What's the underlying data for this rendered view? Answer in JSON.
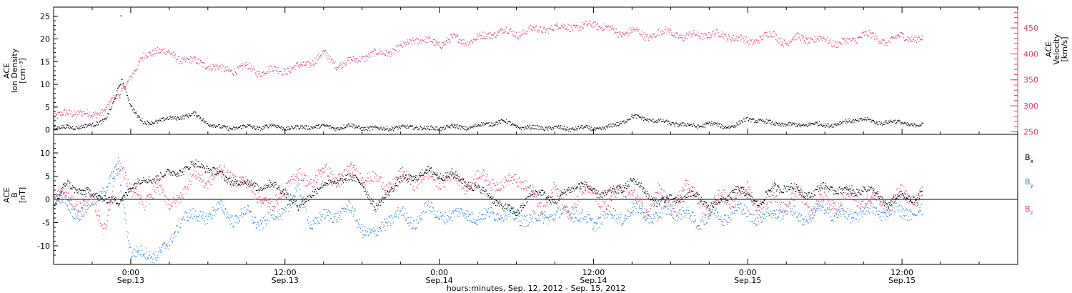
{
  "colors": {
    "density": "#000000",
    "velocity": "#e83a6a",
    "bx": "#000000",
    "by": "#1f7fe0",
    "bz": "#e83a6a",
    "axis": "#000000"
  },
  "chart_data": [
    {
      "type": "scatter",
      "title": "",
      "x_unit": "hours since Sep. 12, 2012 00:00",
      "xlim": [
        18,
        93
      ],
      "yleft_title": [
        "ACE",
        "Ion Density",
        "[cm⁻³]"
      ],
      "yleft_ticks": [
        "0",
        "5",
        "10",
        "15",
        "20",
        "25"
      ],
      "yleft_lim": [
        -1,
        27
      ],
      "yright_title": [
        "ACE",
        "Velocity",
        "[km/s]"
      ],
      "yright_ticks": [
        "250",
        "300",
        "350",
        "400",
        "450"
      ],
      "yright_lim": [
        245,
        490
      ],
      "series": [
        {
          "name": "",
          "axis": "left",
          "color_key": "density",
          "x": [
            18,
            19,
            20,
            21,
            22,
            22.5,
            23,
            23.3,
            23.7,
            24,
            24.5,
            25,
            26,
            27,
            28,
            29,
            30,
            31,
            32,
            33,
            34,
            35,
            36,
            37,
            38,
            39,
            40,
            41,
            42,
            43,
            44,
            45,
            46,
            47,
            48,
            49,
            50,
            51,
            52,
            53,
            54,
            55,
            56,
            57,
            58,
            59,
            60,
            61,
            62,
            63,
            64,
            65,
            66,
            67,
            68,
            69,
            70,
            71,
            72,
            73,
            74,
            75,
            76,
            77,
            78,
            79,
            80,
            81,
            82,
            83,
            84,
            85,
            85.6
          ],
          "y": [
            0.5,
            0.6,
            0.8,
            1.0,
            2.5,
            5.0,
            9.0,
            11.0,
            8.0,
            5.5,
            3.0,
            1.5,
            2.0,
            2.5,
            3.0,
            3.5,
            1.5,
            0.5,
            0.5,
            0.8,
            0.5,
            1.0,
            0.5,
            0.5,
            0.8,
            0.8,
            0.5,
            1.0,
            0.5,
            0.3,
            0.5,
            0.5,
            0.8,
            0.3,
            0.5,
            0.8,
            0.5,
            1.0,
            1.5,
            2.0,
            0.8,
            0.5,
            0.5,
            0.5,
            0.3,
            0.5,
            0.3,
            0.5,
            1.5,
            3.0,
            2.5,
            2.0,
            1.5,
            1.2,
            0.8,
            1.5,
            0.8,
            1.0,
            2.5,
            2.0,
            1.5,
            1.2,
            1.0,
            1.5,
            1.0,
            1.5,
            2.0,
            2.5,
            1.5,
            2.0,
            1.5,
            1.2,
            1.0
          ]
        },
        {
          "name": "",
          "axis": "right",
          "color_key": "velocity",
          "x": [
            18,
            19,
            20,
            21,
            22,
            22.5,
            23,
            23.5,
            24,
            24.5,
            25,
            26,
            27,
            28,
            29,
            30,
            31,
            32,
            33,
            34,
            35,
            36,
            37,
            38,
            39,
            40,
            41,
            42,
            43,
            44,
            45,
            46,
            47,
            48,
            49,
            50,
            51,
            52,
            53,
            54,
            55,
            56,
            57,
            58,
            59,
            60,
            61,
            62,
            63,
            64,
            65,
            66,
            67,
            68,
            69,
            70,
            71,
            72,
            73,
            74,
            75,
            76,
            77,
            78,
            79,
            80,
            81,
            82,
            83,
            84,
            85,
            85.6
          ],
          "y": [
            280,
            285,
            290,
            280,
            295,
            310,
            315,
            340,
            360,
            375,
            395,
            410,
            400,
            390,
            385,
            380,
            370,
            370,
            375,
            365,
            370,
            370,
            375,
            385,
            400,
            380,
            385,
            395,
            400,
            405,
            410,
            430,
            425,
            420,
            430,
            425,
            430,
            440,
            445,
            440,
            445,
            450,
            450,
            455,
            450,
            460,
            450,
            440,
            445,
            435,
            440,
            445,
            430,
            440,
            435,
            440,
            430,
            425,
            430,
            440,
            420,
            435,
            425,
            430,
            420,
            425,
            440,
            430,
            425,
            435,
            430,
            428
          ]
        }
      ]
    },
    {
      "type": "scatter",
      "title": "",
      "x_unit": "hours since Sep. 12, 2012 00:00",
      "xlim": [
        18,
        93
      ],
      "yleft_title": [
        "ACE",
        "B",
        "[nT]"
      ],
      "yleft_ticks": [
        "-10",
        "-5",
        "0",
        "5",
        "10"
      ],
      "yleft_lim": [
        -14,
        14
      ],
      "zero_line": true,
      "legend": [
        {
          "label": "B",
          "sub": "x",
          "color_key": "bx"
        },
        {
          "label": "B",
          "sub": "y",
          "color_key": "by"
        },
        {
          "label": "B",
          "sub": "z",
          "color_key": "bz"
        }
      ],
      "legend_position": "right",
      "series": [
        {
          "name": "Bx",
          "color_key": "bx",
          "x": [
            18,
            19,
            20,
            21,
            22,
            23,
            24,
            25,
            26,
            27,
            28,
            29,
            30,
            31,
            32,
            33,
            34,
            35,
            36,
            37,
            38,
            39,
            40,
            41,
            42,
            43,
            44,
            45,
            46,
            47,
            48,
            49,
            50,
            51,
            52,
            53,
            54,
            55,
            56,
            57,
            58,
            59,
            60,
            61,
            62,
            63,
            64,
            65,
            66,
            67,
            68,
            69,
            70,
            71,
            72,
            73,
            74,
            75,
            76,
            77,
            78,
            79,
            80,
            81,
            82,
            83,
            84,
            85,
            85.6
          ],
          "y": [
            -1.5,
            3.5,
            2.0,
            1.0,
            0.5,
            -1.0,
            3.0,
            4.0,
            5.0,
            5.5,
            6.5,
            7.5,
            7.0,
            5.0,
            4.0,
            3.5,
            3.0,
            3.0,
            2.0,
            -2.0,
            1.5,
            3.0,
            4.0,
            4.5,
            4.0,
            -2.5,
            2.0,
            4.0,
            5.0,
            6.0,
            5.5,
            5.0,
            4.0,
            2.0,
            1.0,
            -2.0,
            -2.5,
            0.5,
            2.0,
            -1.0,
            2.5,
            3.0,
            2.0,
            1.0,
            2.5,
            4.0,
            2.0,
            -1.0,
            0.5,
            0.0,
            1.5,
            -2.0,
            0.0,
            2.0,
            1.0,
            -1.0,
            3.0,
            2.5,
            2.0,
            1.0,
            3.0,
            2.0,
            1.5,
            2.5,
            1.0,
            -1.0,
            1.0,
            0.0,
            1.0
          ]
        },
        {
          "name": "By",
          "color_key": "by",
          "x": [
            18,
            19,
            20,
            21,
            22,
            23,
            24,
            25,
            26,
            27,
            28,
            29,
            30,
            31,
            32,
            33,
            34,
            35,
            36,
            37,
            38,
            39,
            40,
            41,
            42,
            43,
            44,
            45,
            46,
            47,
            48,
            49,
            50,
            51,
            52,
            53,
            54,
            55,
            56,
            57,
            58,
            59,
            60,
            61,
            62,
            63,
            64,
            65,
            66,
            67,
            68,
            69,
            70,
            71,
            72,
            73,
            74,
            75,
            76,
            77,
            78,
            79,
            80,
            81,
            82,
            83,
            84,
            85,
            85.6
          ],
          "y": [
            1.0,
            -1.0,
            -3.0,
            -1.0,
            3.0,
            6.0,
            -11.0,
            -12.0,
            -11.5,
            -10.0,
            -3.0,
            -4.0,
            -3.0,
            -2.0,
            -4.0,
            -3.0,
            -5.0,
            -4.0,
            -2.0,
            2.0,
            -5.0,
            -4.0,
            -3.0,
            -2.0,
            -6.0,
            -8.0,
            -4.0,
            -3.0,
            -5.0,
            -2.0,
            -3.0,
            -4.0,
            -2.0,
            -5.0,
            -2.0,
            -4.0,
            -3.0,
            -5.0,
            -3.0,
            -4.0,
            -2.0,
            -4.0,
            -5.0,
            -3.0,
            -4.0,
            -2.0,
            -3.0,
            -4.0,
            -2.0,
            -3.0,
            -5.0,
            -3.0,
            -4.0,
            -2.0,
            -3.0,
            -4.0,
            -3.0,
            -2.0,
            -4.0,
            -3.0,
            -2.0,
            -3.0,
            -4.0,
            -2.0,
            -3.0,
            -2.0,
            -3.0,
            -2.0,
            -3.0
          ]
        },
        {
          "name": "Bz",
          "color_key": "bz",
          "x": [
            18,
            19,
            20,
            21,
            22,
            23,
            24,
            25,
            26,
            27,
            28,
            29,
            30,
            31,
            32,
            33,
            34,
            35,
            36,
            37,
            38,
            39,
            40,
            41,
            42,
            43,
            44,
            45,
            46,
            47,
            48,
            49,
            50,
            51,
            52,
            53,
            54,
            55,
            56,
            57,
            58,
            59,
            60,
            61,
            62,
            63,
            64,
            65,
            66,
            67,
            68,
            69,
            70,
            71,
            72,
            73,
            74,
            75,
            76,
            77,
            78,
            79,
            80,
            81,
            82,
            83,
            84,
            85,
            85.6
          ],
          "y": [
            1.0,
            0.5,
            -1.0,
            -0.5,
            -6.0,
            8.0,
            3.0,
            -2.0,
            4.0,
            -2.0,
            2.0,
            5.0,
            4.0,
            6.0,
            5.0,
            3.0,
            1.0,
            -2.0,
            3.0,
            5.0,
            4.0,
            6.0,
            5.0,
            6.0,
            5.5,
            4.0,
            3.0,
            5.0,
            4.0,
            5.0,
            4.0,
            5.0,
            3.0,
            5.0,
            4.0,
            3.0,
            5.0,
            2.0,
            -2.0,
            3.0,
            -3.0,
            1.0,
            2.0,
            -2.0,
            3.0,
            1.0,
            -3.0,
            2.0,
            -2.0,
            3.0,
            1.0,
            -3.0,
            2.0,
            -1.0,
            3.0,
            -3.0,
            1.0,
            -2.0,
            2.0,
            -3.0,
            1.0,
            -2.0,
            2.0,
            -1.0,
            1.0,
            -2.0,
            2.0,
            0.0,
            1.0
          ]
        }
      ]
    }
  ],
  "x_axis": {
    "ticks": [
      {
        "hour": 24,
        "time": "0:00",
        "date": "Sep.13"
      },
      {
        "hour": 36,
        "time": "12:00",
        "date": "Sep.13"
      },
      {
        "hour": 48,
        "time": "0:00",
        "date": "Sep.14"
      },
      {
        "hour": 60,
        "time": "12:00",
        "date": "Sep.14"
      },
      {
        "hour": 72,
        "time": "0:00",
        "date": "Sep.15"
      },
      {
        "hour": 84,
        "time": "12:00",
        "date": "Sep.15"
      }
    ],
    "title": "hours:minutes, Sep. 12, 2012 - Sep. 15, 2012"
  }
}
